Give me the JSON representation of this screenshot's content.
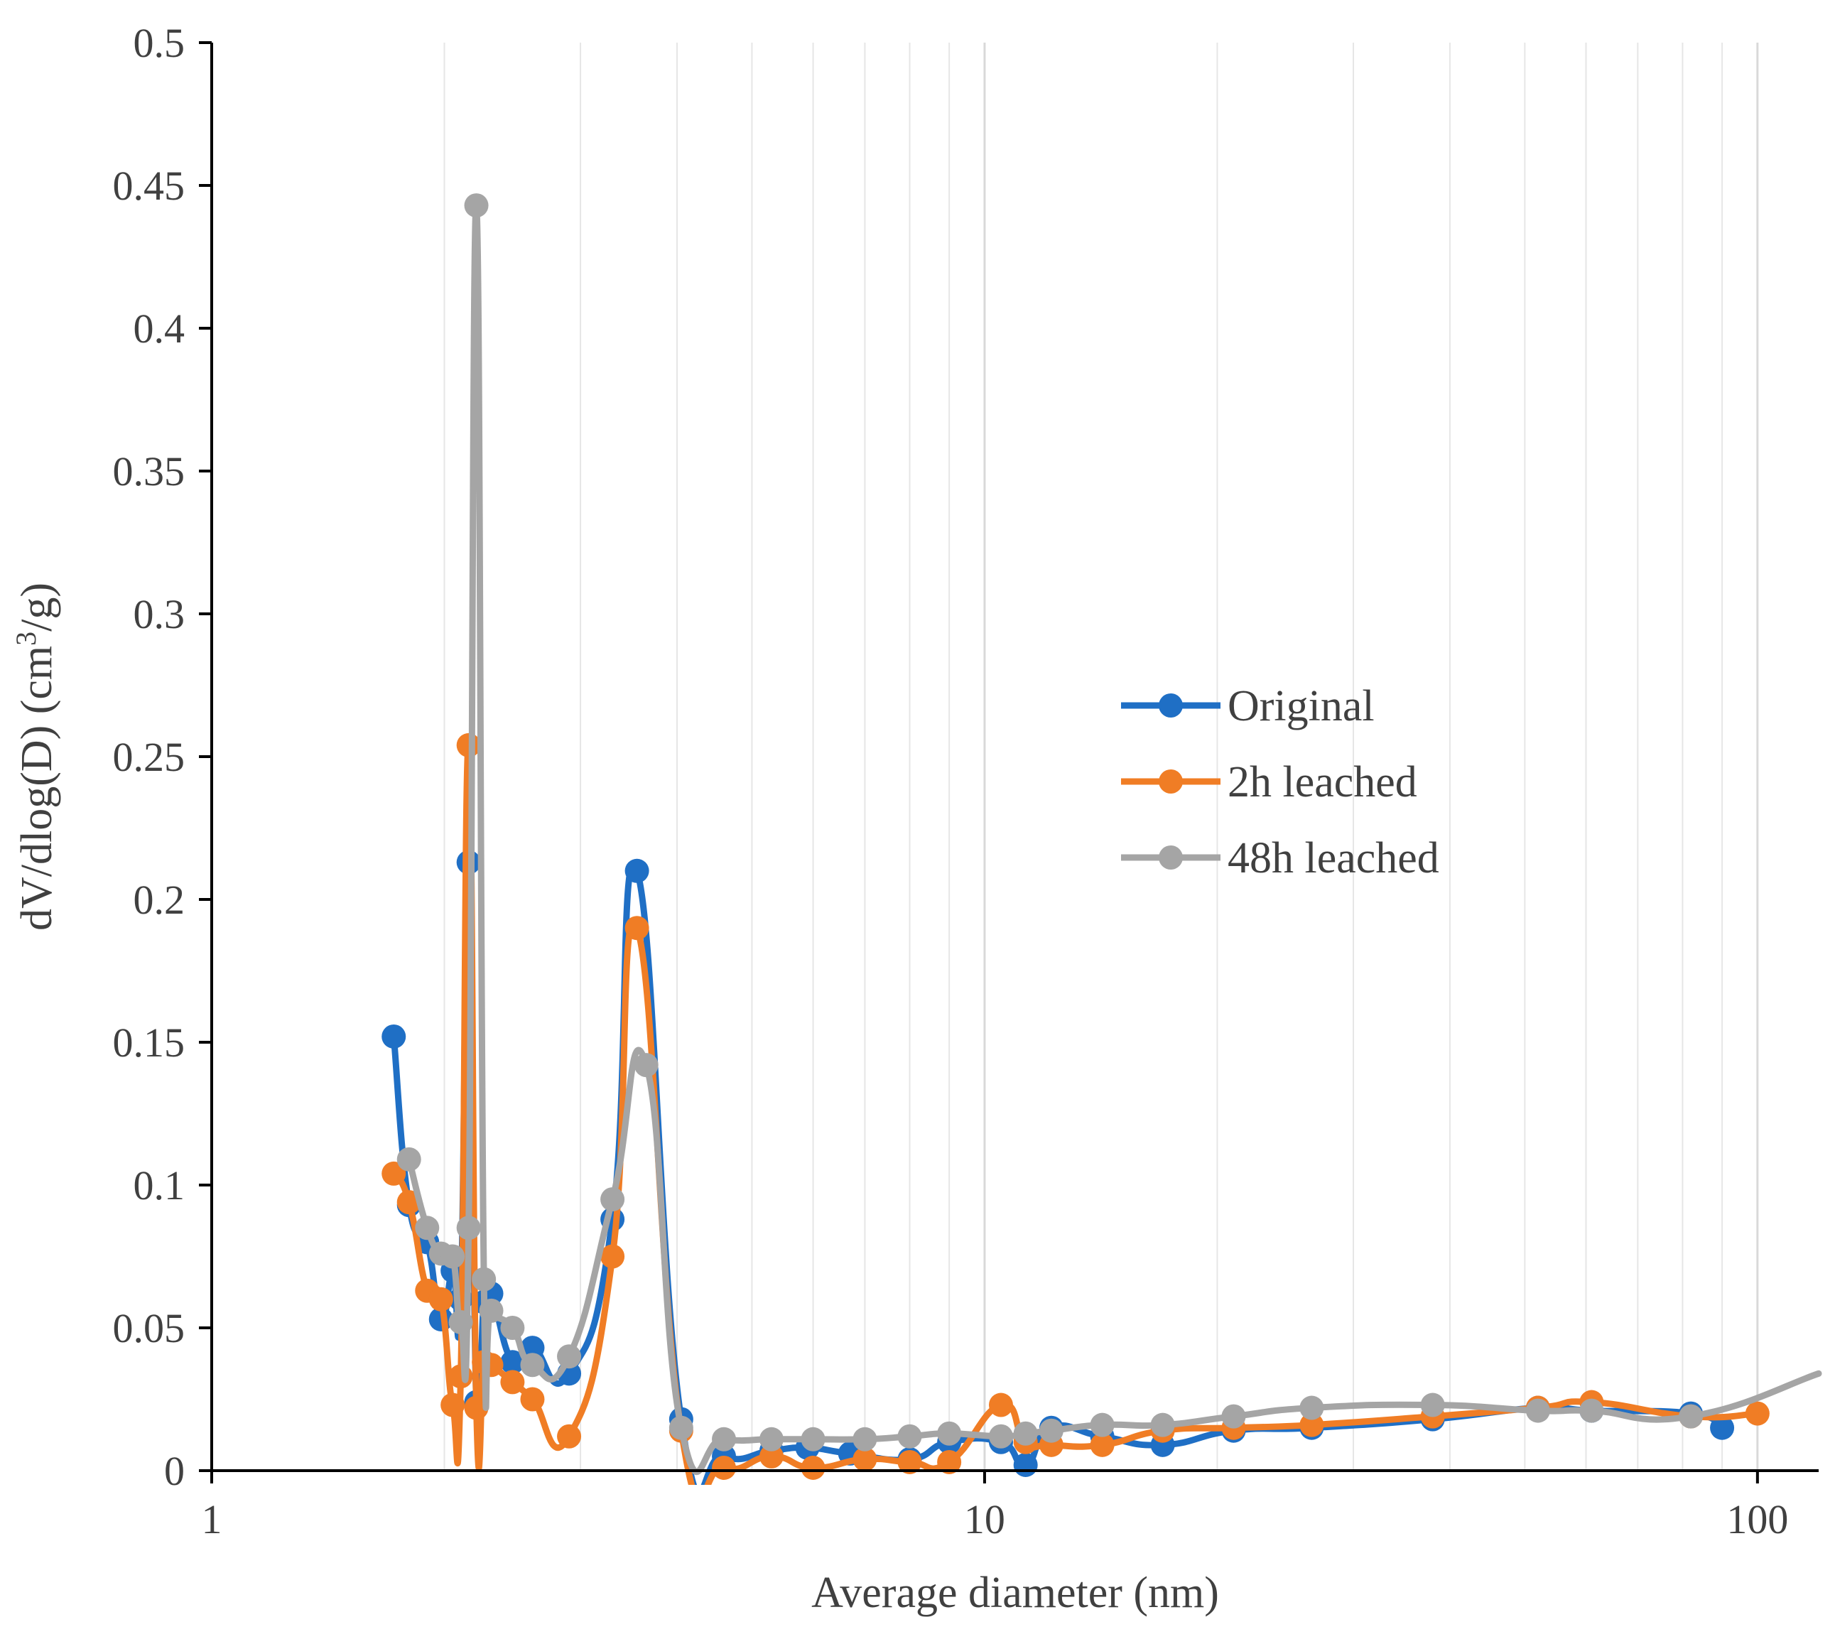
{
  "chart_data": {
    "type": "line",
    "x_scale": "log",
    "xlabel": "Average diameter (nm)",
    "ylabel": "dV/dlog(D) (cm",
    "ylabel_sup": "3",
    "ylabel_end": "/g)",
    "xlim": [
      1,
      120
    ],
    "ylim": [
      0,
      0.5
    ],
    "x_ticks": [
      1,
      10,
      100
    ],
    "x_tick_labels": [
      "1",
      "10",
      "100"
    ],
    "y_ticks": [
      0,
      0.05,
      0.1,
      0.15,
      0.2,
      0.25,
      0.3,
      0.35,
      0.4,
      0.45,
      0.5
    ],
    "y_tick_labels": [
      "0",
      "0.05",
      "0.1",
      "0.15",
      "0.2",
      "0.25",
      "0.3",
      "0.35",
      "0.4",
      "0.45",
      "0.5"
    ],
    "grid": "vertical minor",
    "legend_position": "center-right",
    "series": [
      {
        "name": "Original",
        "color": "#1f6fc5",
        "x": [
          1.72,
          1.8,
          1.9,
          1.98,
          2.05,
          2.1,
          2.15,
          2.2,
          2.25,
          2.3,
          2.45,
          2.6,
          2.9,
          3.3,
          3.55,
          4.05,
          4.6,
          5.3,
          5.9,
          6.7,
          8.0,
          9.0,
          10.5,
          11.3,
          12.2,
          14.2,
          17.0,
          21.0,
          26.5,
          38.0,
          52.0,
          61.0,
          82.0,
          90.0
        ],
        "y": [
          0.152,
          0.093,
          0.08,
          0.053,
          0.07,
          0.06,
          0.213,
          0.024,
          0.059,
          0.062,
          0.038,
          0.043,
          0.034,
          0.088,
          0.21,
          0.018,
          0.005,
          0.007,
          0.008,
          0.006,
          0.004,
          0.01,
          0.01,
          0.002,
          0.015,
          0.012,
          0.009,
          0.014,
          0.015,
          0.018,
          0.022,
          0.021,
          0.02,
          0.015
        ]
      },
      {
        "name": "2h leached",
        "color": "#f07d25",
        "x": [
          1.72,
          1.8,
          1.9,
          1.98,
          2.05,
          2.1,
          2.15,
          2.2,
          2.25,
          2.3,
          2.45,
          2.6,
          2.9,
          3.3,
          3.55,
          4.05,
          4.6,
          5.3,
          6.0,
          7.0,
          8.0,
          9.0,
          10.5,
          11.3,
          12.2,
          14.2,
          17.0,
          21.0,
          26.5,
          38.0,
          52.0,
          61.0,
          82.0,
          100.0
        ],
        "y": [
          0.104,
          0.094,
          0.063,
          0.06,
          0.023,
          0.033,
          0.254,
          0.022,
          0.038,
          0.037,
          0.031,
          0.025,
          0.012,
          0.075,
          0.19,
          0.014,
          0.001,
          0.005,
          0.001,
          0.004,
          0.003,
          0.003,
          0.023,
          0.01,
          0.009,
          0.009,
          0.014,
          0.015,
          0.016,
          0.019,
          0.022,
          0.024,
          0.019,
          0.02
        ]
      },
      {
        "name": "48h leached",
        "color": "#a5a5a5",
        "x": [
          1.8,
          1.9,
          1.98,
          2.05,
          2.1,
          2.15,
          2.2,
          2.25,
          2.3,
          2.45,
          2.6,
          2.9,
          3.3,
          3.65,
          4.05,
          4.6,
          5.3,
          6.0,
          7.0,
          8.0,
          9.0,
          10.5,
          11.3,
          12.2,
          14.2,
          17.0,
          21.0,
          26.5,
          38.0,
          52.0,
          61.0,
          82.0,
          120.0
        ],
        "y": [
          0.109,
          0.085,
          0.076,
          0.075,
          0.052,
          0.085,
          0.443,
          0.067,
          0.056,
          0.05,
          0.037,
          0.04,
          0.095,
          0.142,
          0.015,
          0.011,
          0.011,
          0.011,
          0.011,
          0.012,
          0.013,
          0.012,
          0.013,
          0.014,
          0.016,
          0.016,
          0.019,
          0.022,
          0.023,
          0.021,
          0.021,
          0.019,
          0.034
        ]
      }
    ]
  }
}
